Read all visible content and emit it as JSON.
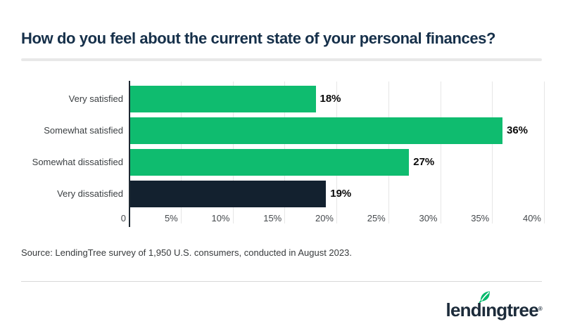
{
  "header": {
    "title": "How do you feel about the current state of your personal finances?"
  },
  "chart_data": {
    "type": "bar",
    "orientation": "horizontal",
    "title": "How do you feel about the current state of your personal finances?",
    "categories": [
      "Very satisfied",
      "Somewhat satisfied",
      "Somewhat dissatisfied",
      "Very dissatisfied"
    ],
    "values": [
      18,
      36,
      27,
      19
    ],
    "value_labels": [
      "18%",
      "36%",
      "27%",
      "19%"
    ],
    "bar_colors": [
      "#0FBC6F",
      "#0FBC6F",
      "#0FBC6F",
      "#13212F"
    ],
    "xlabel": "",
    "ylabel": "",
    "xlim": [
      0,
      40
    ],
    "x_ticks": [
      {
        "label": "0",
        "value": 0
      },
      {
        "label": "5%",
        "value": 5
      },
      {
        "label": "10%",
        "value": 10
      },
      {
        "label": "15%",
        "value": 15
      },
      {
        "label": "20%",
        "value": 20
      },
      {
        "label": "25%",
        "value": 25
      },
      {
        "label": "30%",
        "value": 30
      },
      {
        "label": "35%",
        "value": 35
      },
      {
        "label": "40%",
        "value": 40
      }
    ],
    "grid": true,
    "legend": "none"
  },
  "footer": {
    "source": "Source: LendingTree survey of 1,950 U.S. consumers, conducted in August 2023.",
    "logo": {
      "name": "lendingtree",
      "text_before_leaf": "lend",
      "dotless_i": "ı",
      "text_after_leaf": "ngtree",
      "registered_mark": "®"
    }
  },
  "colors": {
    "background": "#FFFFFF",
    "bar_green": "#0FBC6F",
    "bar_navy": "#13212F",
    "title_navy": "#16304A",
    "logo_navy": "#1C2B3A",
    "leaf_green": "#00BA6B",
    "gridline": "#E6E6E6",
    "axis_line": "#1F2933",
    "divider_top": "#E8E8E8",
    "divider_bottom": "#D8D8D8",
    "tick_label": "#45494D",
    "category_label": "#3C4043",
    "value_label": "#0A0A0A"
  }
}
